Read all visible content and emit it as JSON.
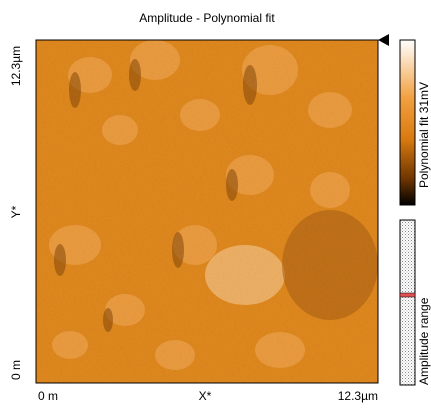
{
  "plot": {
    "title": "Amplitude - Polynomial fit",
    "y_axis": {
      "max_label": "12.3µm",
      "label": "Y*",
      "min_label": "0 m"
    },
    "x_axis": {
      "min_label": "0 m",
      "label": "X*",
      "max_label": "12.3µm"
    }
  },
  "color_bar": {
    "label": "Polynomial fit 31mV"
  },
  "range_bar": {
    "label": "Amplitude range"
  }
}
